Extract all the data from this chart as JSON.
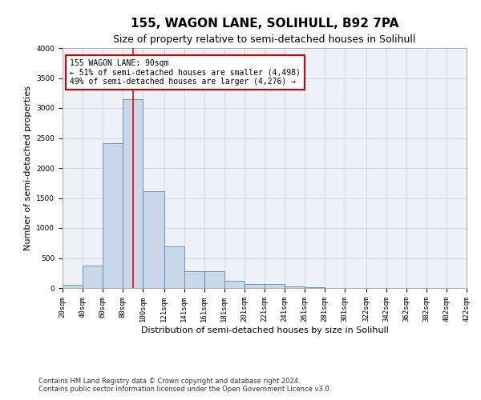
{
  "title": "155, WAGON LANE, SOLIHULL, B92 7PA",
  "subtitle": "Size of property relative to semi-detached houses in Solihull",
  "xlabel": "Distribution of semi-detached houses by size in Solihull",
  "ylabel": "Number of semi-detached properties",
  "footnote1": "Contains HM Land Registry data © Crown copyright and database right 2024.",
  "footnote2": "Contains public sector information licensed under the Open Government Licence v3.0.",
  "annotation_line1": "155 WAGON LANE: 90sqm",
  "annotation_line2": "← 51% of semi-detached houses are smaller (4,498)",
  "annotation_line3": "49% of semi-detached houses are larger (4,276) →",
  "bar_left_edges": [
    20,
    40,
    60,
    80,
    100,
    121,
    141,
    161,
    181,
    201,
    221,
    241,
    261,
    281,
    301,
    322,
    342,
    362,
    382,
    402
  ],
  "bar_widths": [
    20,
    20,
    20,
    20,
    21,
    20,
    20,
    20,
    20,
    20,
    20,
    20,
    20,
    20,
    21,
    20,
    20,
    20,
    20,
    20
  ],
  "bar_heights": [
    50,
    380,
    2420,
    3150,
    1620,
    700,
    280,
    280,
    120,
    70,
    65,
    30,
    10,
    5,
    3,
    2,
    1,
    1,
    0,
    0
  ],
  "bar_color": "#c8d8e8",
  "bar_edge_color": "#5a8ab0",
  "red_line_x": 90,
  "ylim": [
    0,
    4000
  ],
  "yticks": [
    0,
    500,
    1000,
    1500,
    2000,
    2500,
    3000,
    3500,
    4000
  ],
  "xlim": [
    20,
    422
  ],
  "xtick_labels": [
    "20sqm",
    "40sqm",
    "60sqm",
    "80sqm",
    "100sqm",
    "121sqm",
    "141sqm",
    "161sqm",
    "181sqm",
    "201sqm",
    "221sqm",
    "241sqm",
    "261sqm",
    "281sqm",
    "301sqm",
    "322sqm",
    "342sqm",
    "362sqm",
    "382sqm",
    "402sqm",
    "422sqm"
  ],
  "xtick_positions": [
    20,
    40,
    60,
    80,
    100,
    121,
    141,
    161,
    181,
    201,
    221,
    241,
    261,
    281,
    301,
    322,
    342,
    362,
    382,
    402,
    422
  ],
  "grid_color": "#d0d8e8",
  "background_color": "#eef2f8",
  "annotation_box_color": "#ffffff",
  "annotation_box_edge": "#cc0000",
  "title_fontsize": 11,
  "subtitle_fontsize": 9,
  "axis_label_fontsize": 8,
  "tick_fontsize": 6.5,
  "annotation_fontsize": 7,
  "footnote_fontsize": 6
}
